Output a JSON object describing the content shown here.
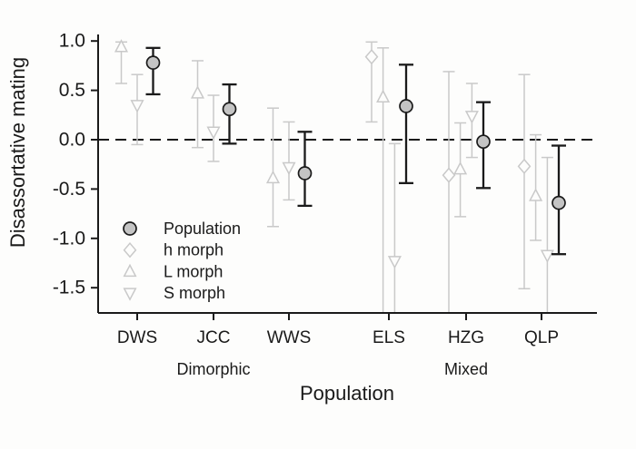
{
  "figure": {
    "background_color": "#fdfdfc",
    "text_color": "#1a1a1a",
    "morph_color": "#c9c9c9",
    "population_bar_color": "#1a1a1a",
    "population_marker_fill": "#c4c4c4"
  },
  "chart_data": {
    "type": "scatter",
    "title": "",
    "ylabel": "Disassortative mating",
    "xlabel": "Population",
    "ylim": [
      -1.76,
      1.07
    ],
    "y_ticks": [
      1.0,
      0.5,
      0.0,
      -0.5,
      -1.0,
      -1.5
    ],
    "zero_reference_line": {
      "y": 0.0,
      "style": "dashed"
    },
    "grid": "off",
    "categories": [
      "DWS",
      "JCC",
      "WWS",
      "ELS",
      "HZG",
      "QLP"
    ],
    "group_labels": [
      {
        "label": "Dimorphic",
        "categories": [
          "DWS",
          "JCC",
          "WWS"
        ],
        "anchor_category": "JCC"
      },
      {
        "label": "Mixed",
        "categories": [
          "ELS",
          "HZG",
          "QLP"
        ],
        "anchor_category": "HZG"
      }
    ],
    "legend": {
      "position": "inside bottom-left"
    },
    "legend_order": [
      "Population",
      "h morph",
      "L morph",
      "S morph"
    ],
    "draw_order": [
      "h morph",
      "L morph",
      "S morph",
      "Population"
    ],
    "ci_note": "ci_low null = interval extends below plotted axis range (bar clipped, no cap)",
    "series": [
      {
        "name": "Population",
        "marker": "circle",
        "line_color": "#1a1a1a",
        "marker_stroke": "#1a1a1a",
        "marker_fill": "#c4c4c4",
        "points": [
          {
            "category": "DWS",
            "value": 0.78,
            "ci_low": 0.46,
            "ci_high": 0.93
          },
          {
            "category": "JCC",
            "value": 0.31,
            "ci_low": -0.04,
            "ci_high": 0.56
          },
          {
            "category": "WWS",
            "value": -0.34,
            "ci_low": -0.67,
            "ci_high": 0.08
          },
          {
            "category": "ELS",
            "value": 0.34,
            "ci_low": -0.44,
            "ci_high": 0.76
          },
          {
            "category": "HZG",
            "value": -0.02,
            "ci_low": -0.49,
            "ci_high": 0.38
          },
          {
            "category": "QLP",
            "value": -0.64,
            "ci_low": -1.16,
            "ci_high": -0.06
          }
        ]
      },
      {
        "name": "h morph",
        "marker": "diamond",
        "line_color": "#c9c9c9",
        "marker_stroke": "#c9c9c9",
        "marker_fill": "#fdfdfc",
        "points": [
          {
            "category": "ELS",
            "value": 0.84,
            "ci_low": 0.18,
            "ci_high": 0.99
          },
          {
            "category": "HZG",
            "value": -0.36,
            "ci_low": null,
            "ci_high": 0.69
          },
          {
            "category": "QLP",
            "value": -0.27,
            "ci_low": -1.51,
            "ci_high": 0.66
          }
        ]
      },
      {
        "name": "L morph",
        "marker": "triangle-up",
        "line_color": "#c9c9c9",
        "marker_stroke": "#c9c9c9",
        "marker_fill": "#fdfdfc",
        "points": [
          {
            "category": "DWS",
            "value": 0.94,
            "ci_low": 0.57,
            "ci_high": 0.99
          },
          {
            "category": "JCC",
            "value": 0.47,
            "ci_low": -0.08,
            "ci_high": 0.8
          },
          {
            "category": "WWS",
            "value": -0.39,
            "ci_low": -0.88,
            "ci_high": 0.32
          },
          {
            "category": "ELS",
            "value": 0.43,
            "ci_low": null,
            "ci_high": 0.93
          },
          {
            "category": "HZG",
            "value": -0.3,
            "ci_low": -0.78,
            "ci_high": 0.17
          },
          {
            "category": "QLP",
            "value": -0.57,
            "ci_low": -1.02,
            "ci_high": 0.05
          }
        ]
      },
      {
        "name": "S morph",
        "marker": "triangle-down",
        "line_color": "#c9c9c9",
        "marker_stroke": "#c9c9c9",
        "marker_fill": "#fdfdfc",
        "points": [
          {
            "category": "DWS",
            "value": 0.35,
            "ci_low": -0.05,
            "ci_high": 0.66
          },
          {
            "category": "JCC",
            "value": 0.08,
            "ci_low": -0.22,
            "ci_high": 0.45
          },
          {
            "category": "WWS",
            "value": -0.28,
            "ci_low": -0.61,
            "ci_high": 0.18
          },
          {
            "category": "ELS",
            "value": -1.23,
            "ci_low": null,
            "ci_high": -0.04
          },
          {
            "category": "HZG",
            "value": 0.24,
            "ci_low": -0.18,
            "ci_high": 0.57
          },
          {
            "category": "QLP",
            "value": -1.17,
            "ci_low": null,
            "ci_high": -0.18
          }
        ]
      }
    ]
  }
}
